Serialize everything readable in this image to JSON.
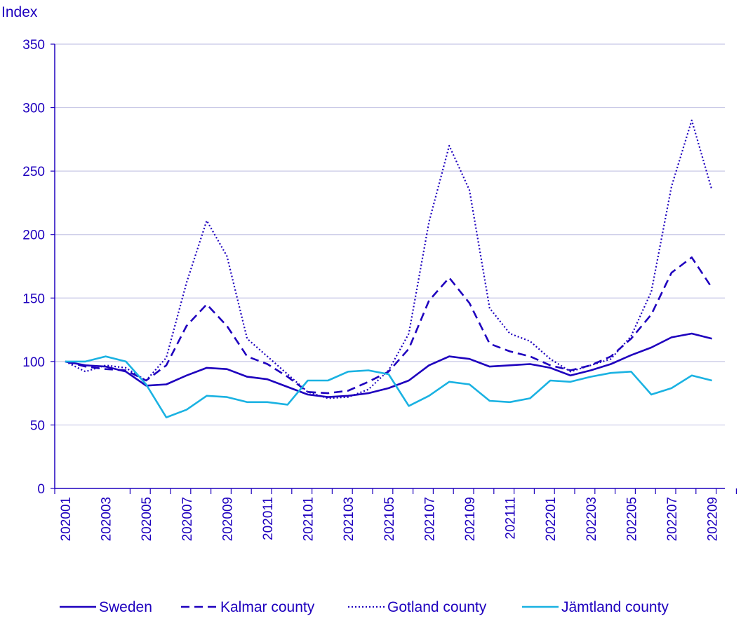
{
  "chart_data": {
    "type": "line",
    "title": "",
    "ylabel": "Index",
    "xlabel": "",
    "ylim": [
      0,
      350
    ],
    "yticks": [
      0,
      50,
      100,
      150,
      200,
      250,
      300,
      350
    ],
    "grid": true,
    "legend_position": "bottom",
    "x": [
      "202001",
      "202002",
      "202003",
      "202004",
      "202005",
      "202006",
      "202007",
      "202008",
      "202009",
      "202010",
      "202011",
      "202012",
      "202101",
      "202102",
      "202103",
      "202104",
      "202105",
      "202106",
      "202107",
      "202108",
      "202109",
      "202110",
      "202111",
      "202112",
      "202201",
      "202202",
      "202203",
      "202204",
      "202205",
      "202206",
      "202207",
      "202208",
      "202209"
    ],
    "xticklabels": [
      "202001",
      "202003",
      "202005",
      "202007",
      "202009",
      "202011",
      "202101",
      "202103",
      "202105",
      "202107",
      "202109",
      "202111",
      "202201",
      "202203",
      "202205",
      "202207",
      "202209"
    ],
    "series": [
      {
        "name": "Sweden",
        "style": "solid",
        "color": "#1e00be",
        "values": [
          100,
          97,
          96,
          92,
          81,
          82,
          89,
          95,
          94,
          88,
          86,
          80,
          74,
          72,
          73,
          75,
          79,
          85,
          97,
          104,
          102,
          96,
          97,
          98,
          95,
          89,
          93,
          98,
          105,
          111,
          119,
          122,
          118
        ]
      },
      {
        "name": "Kalmar county",
        "style": "dashed",
        "color": "#1e00be",
        "values": [
          100,
          96,
          94,
          93,
          85,
          97,
          128,
          145,
          128,
          104,
          98,
          88,
          76,
          75,
          77,
          84,
          92,
          110,
          148,
          166,
          146,
          114,
          108,
          104,
          97,
          93,
          97,
          104,
          118,
          137,
          170,
          182,
          158
        ]
      },
      {
        "name": "Gotland county",
        "style": "dotted",
        "color": "#1e00be",
        "values": [
          100,
          92,
          97,
          95,
          85,
          103,
          162,
          211,
          183,
          118,
          104,
          90,
          76,
          71,
          72,
          78,
          93,
          122,
          210,
          270,
          235,
          142,
          122,
          116,
          102,
          92,
          97,
          102,
          120,
          155,
          238,
          290,
          235
        ]
      },
      {
        "name": "Jämtland county",
        "style": "solid",
        "color": "#1ab2e2",
        "values": [
          100,
          100,
          104,
          100,
          82,
          56,
          62,
          73,
          72,
          68,
          68,
          66,
          85,
          85,
          92,
          93,
          90,
          65,
          73,
          84,
          82,
          69,
          68,
          71,
          85,
          84,
          88,
          91,
          92,
          74,
          79,
          89,
          85
        ]
      }
    ]
  }
}
